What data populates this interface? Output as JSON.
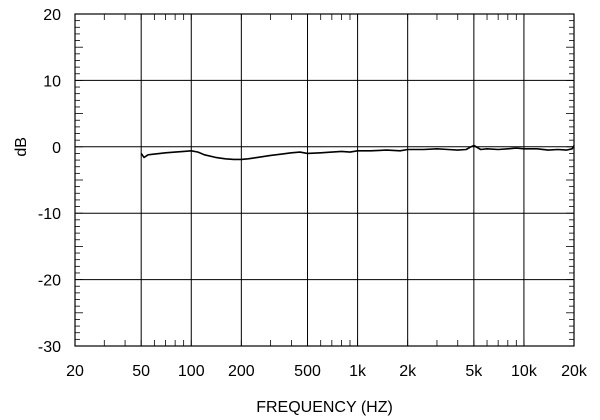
{
  "chart_data": {
    "type": "line",
    "title": "",
    "xlabel": "FREQUENCY  (HZ)",
    "ylabel": "dB",
    "x_scale": "log",
    "xlim": [
      20,
      20000
    ],
    "ylim": [
      -30,
      20
    ],
    "grid": true,
    "x_ticks": [
      {
        "value": 20,
        "label": "20"
      },
      {
        "value": 50,
        "label": "50"
      },
      {
        "value": 100,
        "label": "100"
      },
      {
        "value": 200,
        "label": "200"
      },
      {
        "value": 500,
        "label": "500"
      },
      {
        "value": 1000,
        "label": "1k"
      },
      {
        "value": 2000,
        "label": "2k"
      },
      {
        "value": 5000,
        "label": "5k"
      },
      {
        "value": 10000,
        "label": "10k"
      },
      {
        "value": 20000,
        "label": "20k"
      }
    ],
    "y_ticks": [
      {
        "value": 20,
        "label": "20"
      },
      {
        "value": 10,
        "label": "10"
      },
      {
        "value": 0,
        "label": "0"
      },
      {
        "value": -10,
        "label": "-10"
      },
      {
        "value": -20,
        "label": "-20"
      },
      {
        "value": -30,
        "label": "-30"
      }
    ],
    "series": [
      {
        "color": "#000000",
        "x": [
          50,
          52,
          55,
          60,
          65,
          70,
          80,
          90,
          100,
          110,
          120,
          140,
          160,
          180,
          200,
          220,
          250,
          300,
          350,
          400,
          450,
          500,
          600,
          700,
          800,
          900,
          1000,
          1200,
          1500,
          1800,
          2000,
          2500,
          3000,
          3500,
          4000,
          4500,
          4800,
          5000,
          5500,
          6000,
          7000,
          8000,
          9000,
          10000,
          12000,
          14000,
          16000,
          18000,
          19500,
          20000
        ],
        "y": [
          -1.0,
          -1.6,
          -1.2,
          -1.1,
          -1.0,
          -0.9,
          -0.8,
          -0.7,
          -0.6,
          -0.8,
          -1.2,
          -1.6,
          -1.8,
          -1.9,
          -1.9,
          -1.8,
          -1.6,
          -1.3,
          -1.1,
          -0.9,
          -0.8,
          -1.0,
          -0.9,
          -0.8,
          -0.7,
          -0.8,
          -0.6,
          -0.6,
          -0.5,
          -0.6,
          -0.4,
          -0.4,
          -0.3,
          -0.4,
          -0.5,
          -0.4,
          0.0,
          0.2,
          -0.4,
          -0.3,
          -0.4,
          -0.3,
          -0.2,
          -0.3,
          -0.3,
          -0.5,
          -0.4,
          -0.5,
          -0.3,
          0.2
        ]
      }
    ]
  }
}
